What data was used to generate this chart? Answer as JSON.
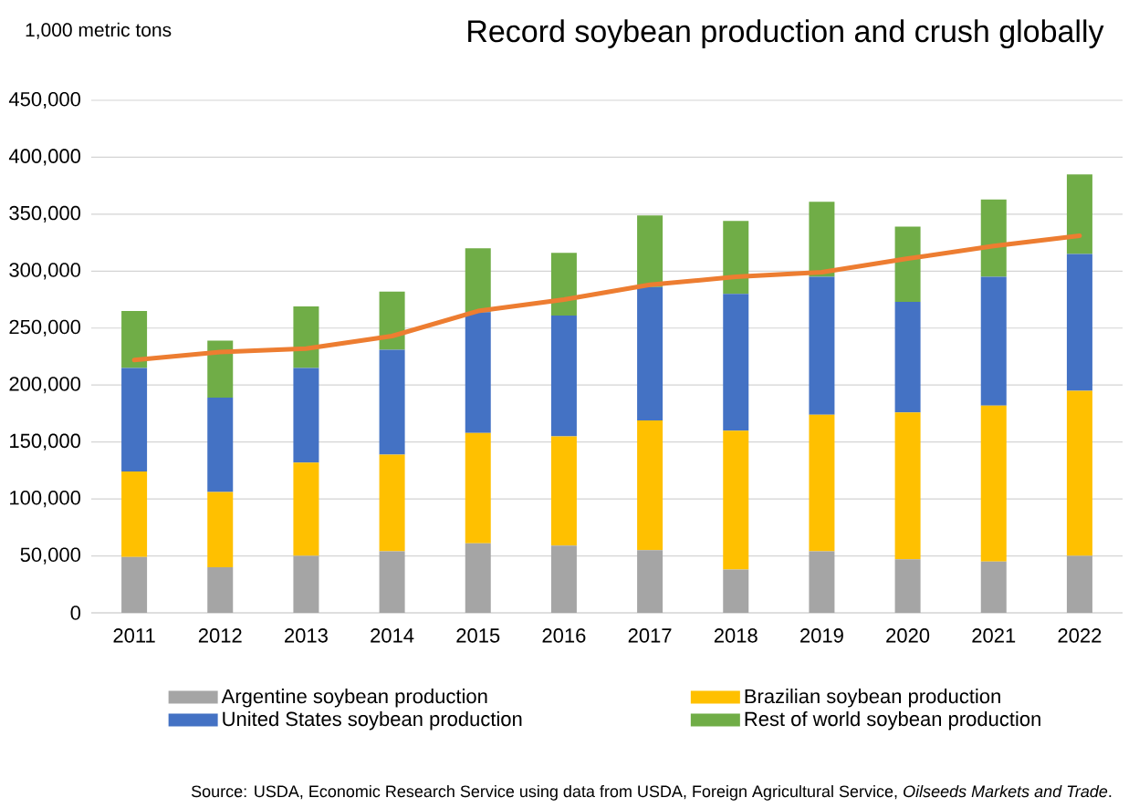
{
  "chart_data": {
    "type": "bar",
    "title": "Record soybean production and crush globally",
    "ylabel": "1,000 metric tons",
    "categories": [
      "2011",
      "2012",
      "2013",
      "2014",
      "2015",
      "2016",
      "2017",
      "2018",
      "2019",
      "2020",
      "2021",
      "2022"
    ],
    "stacked": true,
    "series": [
      {
        "name": "Argentine soybean production",
        "color": "#a5a5a5",
        "values": [
          49000,
          40000,
          50000,
          54000,
          61000,
          59000,
          55000,
          38000,
          54000,
          47000,
          45000,
          50000
        ]
      },
      {
        "name": "Brazilian soybean production",
        "color": "#ffc000",
        "values": [
          75000,
          66000,
          82000,
          85000,
          97000,
          96000,
          114000,
          122000,
          120000,
          129000,
          137000,
          145000
        ]
      },
      {
        "name": "United States soybean production",
        "color": "#4472c4",
        "values": [
          91000,
          83000,
          83000,
          92000,
          106000,
          106000,
          117000,
          120000,
          121000,
          97000,
          113000,
          120000
        ]
      },
      {
        "name": "Rest of world soybean production",
        "color": "#70ad47",
        "values": [
          50000,
          50000,
          54000,
          51000,
          56000,
          55000,
          63000,
          64000,
          66000,
          66000,
          68000,
          70000
        ]
      },
      {
        "type": "line",
        "color": "#ed7d31",
        "values": [
          222000,
          229000,
          232000,
          243000,
          265000,
          275000,
          288000,
          295000,
          299000,
          311000,
          322000,
          331000
        ]
      }
    ],
    "ylim": [
      0,
      450000
    ],
    "yticks": [
      {
        "value": 0,
        "label": "0"
      },
      {
        "value": 50000,
        "label": "50,000"
      },
      {
        "value": 100000,
        "label": "100,000"
      },
      {
        "value": 150000,
        "label": "150,000"
      },
      {
        "value": 200000,
        "label": "200,000"
      },
      {
        "value": 250000,
        "label": "250,000"
      },
      {
        "value": 300000,
        "label": "300,000"
      },
      {
        "value": 350000,
        "label": "350,000"
      },
      {
        "value": 400000,
        "label": "400,000"
      },
      {
        "value": 450000,
        "label": "450,000"
      }
    ],
    "grid": "y",
    "legend": "bottom",
    "annotations": [
      "Source: USDA, Economic Research Service using data from USDA, Foreign Agricultural Service, *Oilseeds Markets and Trade*."
    ]
  }
}
